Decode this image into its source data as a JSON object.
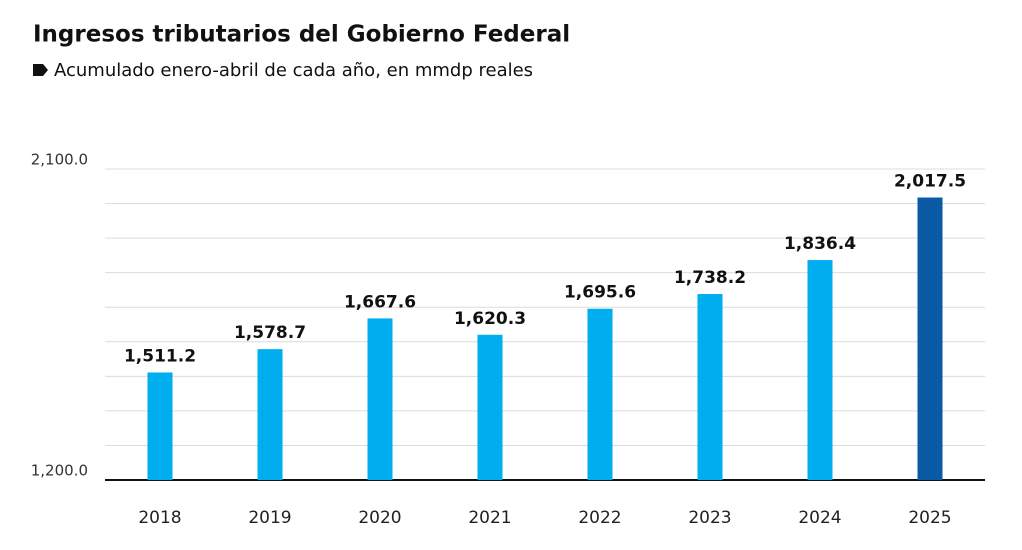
{
  "chart_data": {
    "type": "bar",
    "title": "Ingresos tributarios del Gobierno Federal",
    "subtitle": "Acumulado enero-abril de cada año, en mmdp reales",
    "categories": [
      "2018",
      "2019",
      "2020",
      "2021",
      "2022",
      "2023",
      "2024",
      "2025"
    ],
    "values": [
      1511.2,
      1578.7,
      1667.6,
      1620.3,
      1695.6,
      1738.2,
      1836.4,
      2017.5
    ],
    "value_labels": [
      "1,511.2",
      "1,578.7",
      "1,667.6",
      "1,620.3",
      "1,695.6",
      "1,738.2",
      "1,836.4",
      "2,017.5"
    ],
    "colors": [
      "#00aeef",
      "#00aeef",
      "#00aeef",
      "#00aeef",
      "#00aeef",
      "#00aeef",
      "#00aeef",
      "#0a5aa5"
    ],
    "ylim": [
      1200,
      2100
    ],
    "yticks": [
      {
        "value": 1200,
        "label": "1,200.0"
      },
      {
        "value": 2100,
        "label": "2,100.0"
      }
    ],
    "grid_yticks": [
      1300,
      1400,
      1500,
      1600,
      1700,
      1800,
      1900,
      2000
    ],
    "grid": true
  }
}
